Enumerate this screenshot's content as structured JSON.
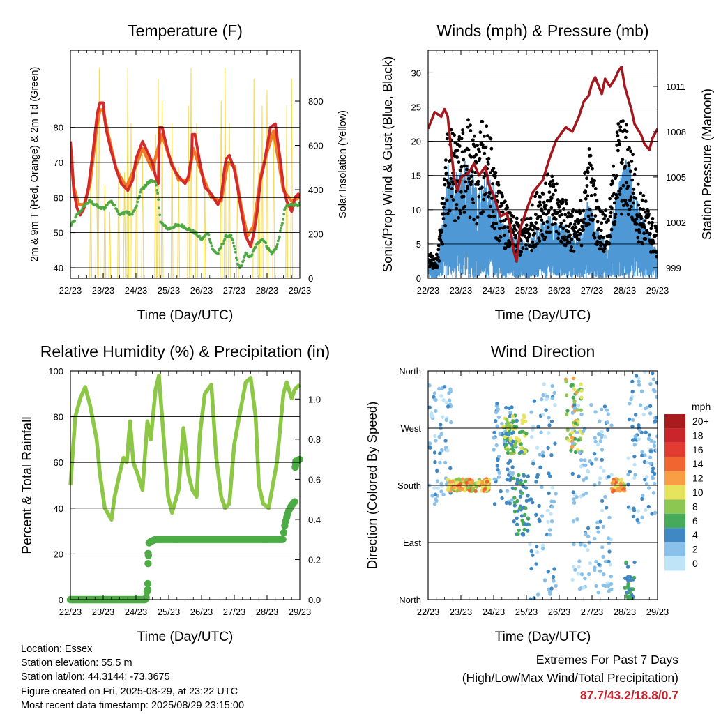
{
  "chart_data": [
    {
      "type": "line",
      "title": "Temperature (F)",
      "xlabel": "Time (Day/UTC)",
      "ylabel": "2m & 9m T (Red, Orange) & 2m Td (Green)",
      "ylabel_right": "Solar Insolation (Yellow)",
      "x_ticks": [
        "22/23",
        "23/23",
        "24/23",
        "25/23",
        "26/23",
        "27/23",
        "28/23",
        "29/23"
      ],
      "xlim_days": [
        0,
        7
      ],
      "ylim": [
        37,
        102
      ],
      "y_ticks": [
        40,
        50,
        60,
        70,
        80
      ],
      "ylim_right": [
        0,
        1030
      ],
      "y_ticks_right": [
        0,
        200,
        400,
        600,
        800
      ],
      "grid": "horizontal",
      "colors": {
        "t2m": "#d42a2a",
        "t9m": "#f07b22",
        "td2m": "#4fa843",
        "solar": "#f5dc5a"
      },
      "series": [
        {
          "key": "t2m",
          "x": [
            0,
            0.05,
            0.1,
            0.2,
            0.3,
            0.42,
            0.55,
            0.7,
            0.82,
            0.9,
            1.0,
            1.05,
            1.1,
            1.25,
            1.4,
            1.55,
            1.75,
            1.9,
            2.0,
            2.2,
            2.35,
            2.5,
            2.6,
            2.68,
            2.72,
            2.8,
            2.95,
            3.1,
            3.3,
            3.5,
            3.6,
            3.7,
            3.72,
            3.8,
            3.95,
            4.1,
            4.3,
            4.5,
            4.6,
            4.7,
            4.75,
            4.85,
            5.0,
            5.1,
            5.2,
            5.35,
            5.5,
            5.6,
            5.7,
            5.8,
            5.9,
            6.1,
            6.25,
            6.4,
            6.5,
            6.6,
            6.75,
            6.85,
            6.95,
            7.0
          ],
          "values": [
            76,
            70,
            62,
            57,
            55,
            57,
            63,
            74,
            84,
            87,
            87,
            82,
            79,
            73,
            68,
            64,
            62,
            65,
            71,
            76,
            73,
            70,
            66,
            64,
            80,
            80,
            74,
            69,
            66,
            64,
            66,
            72,
            78,
            78,
            70,
            63,
            61,
            58,
            60,
            68,
            71,
            72,
            68,
            63,
            57,
            49,
            46,
            50,
            56,
            65,
            69,
            80,
            81,
            71,
            63,
            59,
            56,
            60,
            61,
            60
          ]
        },
        {
          "key": "t9m",
          "x": [
            0,
            0.1,
            0.25,
            0.42,
            0.6,
            0.8,
            0.9,
            1.0,
            1.15,
            1.4,
            1.7,
            2.0,
            2.2,
            2.5,
            2.7,
            2.8,
            3.0,
            3.3,
            3.6,
            3.75,
            4.0,
            4.3,
            4.6,
            4.8,
            5.0,
            5.2,
            5.4,
            5.6,
            5.8,
            6.0,
            6.2,
            6.5,
            6.75,
            7.0
          ],
          "values": [
            74,
            63,
            58,
            58,
            64,
            80,
            85,
            85,
            78,
            68,
            63,
            69,
            74,
            68,
            75,
            78,
            72,
            65,
            65,
            74,
            67,
            60,
            59,
            70,
            69,
            58,
            49,
            52,
            66,
            73,
            79,
            62,
            59,
            60
          ]
        },
        {
          "key": "td2m",
          "x": [
            0,
            0.1,
            0.2,
            0.3,
            0.45,
            0.6,
            0.75,
            0.9,
            1.05,
            1.2,
            1.35,
            1.5,
            1.7,
            1.85,
            2.0,
            2.15,
            2.35,
            2.5,
            2.6,
            2.68,
            2.75,
            2.85,
            3.0,
            3.2,
            3.4,
            3.6,
            3.8,
            4.0,
            4.2,
            4.35,
            4.5,
            4.6,
            4.75,
            4.9,
            5.0,
            5.1,
            5.2,
            5.35,
            5.5,
            5.65,
            5.8,
            5.9,
            6.0,
            6.15,
            6.3,
            6.45,
            6.55,
            6.7,
            6.85,
            7.0
          ],
          "values": [
            52,
            53,
            55,
            56,
            58,
            59,
            58,
            57,
            57,
            59,
            58,
            55,
            56,
            55,
            57,
            62,
            64,
            65,
            64,
            60,
            53,
            52,
            51,
            52,
            52,
            51,
            50,
            48,
            50,
            45,
            44,
            46,
            49,
            49,
            46,
            41,
            40,
            44,
            43,
            46,
            48,
            48,
            46,
            44,
            46,
            52,
            57,
            58,
            58,
            58
          ]
        },
        {
          "key": "solar",
          "x_peak": [
            0.62,
            0.8,
            0.88,
            1.05,
            1.2,
            1.47,
            1.65,
            1.75,
            1.85,
            2.02,
            2.2,
            2.6,
            2.68,
            2.8,
            3.1,
            3.3,
            3.6,
            3.68,
            3.85,
            4.1,
            4.6,
            4.72,
            4.85,
            5.1,
            5.6,
            5.75,
            5.85,
            6.0,
            6.2,
            6.6,
            6.75
          ],
          "values": [
            480,
            700,
            950,
            420,
            300,
            500,
            480,
            950,
            700,
            560,
            560,
            650,
            900,
            800,
            700,
            500,
            780,
            950,
            700,
            420,
            800,
            950,
            700,
            450,
            900,
            600,
            780,
            850,
            660,
            780,
            900
          ]
        }
      ]
    },
    {
      "type": "scatter",
      "title": "Winds (mph) & Pressure (mb)",
      "xlabel": "Time (Day/UTC)",
      "ylabel": "Sonic/Prop Wind & Gust (Blue, Black)",
      "ylabel_right": "Station Pressure (Maroon)",
      "x_ticks": [
        "22/23",
        "23/23",
        "24/23",
        "25/23",
        "26/23",
        "27/23",
        "28/23",
        "29/23"
      ],
      "xlim_days": [
        0,
        7
      ],
      "ylim": [
        0,
        33.3
      ],
      "y_ticks": [
        0,
        5,
        10,
        15,
        20,
        25,
        30
      ],
      "ylim_right": [
        998.3,
        1013.4
      ],
      "y_ticks_right": [
        999,
        1002,
        1005,
        1008,
        1011
      ],
      "grid": "horizontal",
      "colors": {
        "wind": "#4f98d6",
        "gust": "#000000",
        "pressure": "#a3171e"
      },
      "wind_envelope": {
        "x": [
          0,
          0.3,
          0.6,
          0.9,
          1.2,
          1.5,
          1.8,
          2.0,
          2.2,
          2.5,
          2.8,
          3.1,
          3.4,
          3.7,
          4.0,
          4.3,
          4.6,
          4.9,
          5.2,
          5.5,
          5.8,
          6.1,
          6.4,
          6.7,
          7.0
        ],
        "values": [
          2,
          2,
          12,
          11,
          13,
          10,
          11,
          10,
          7,
          5,
          4,
          4,
          6,
          7,
          6,
          5,
          4,
          9,
          5,
          4,
          10,
          13,
          8,
          5,
          3
        ]
      },
      "gust_envelope": {
        "x": [
          0,
          0.3,
          0.6,
          0.9,
          1.2,
          1.5,
          1.8,
          2.0,
          2.2,
          2.5,
          2.8,
          3.1,
          3.4,
          3.7,
          4.0,
          4.3,
          4.6,
          4.9,
          5.2,
          5.5,
          5.8,
          6.1,
          6.4,
          6.7,
          7.0
        ],
        "values": [
          3,
          3,
          19,
          17,
          20,
          17,
          22,
          14,
          11,
          8,
          7,
          8,
          12,
          13,
          11,
          9,
          8,
          17,
          9,
          8,
          20,
          19,
          12,
          9,
          6
        ]
      },
      "pressure": {
        "x": [
          0,
          0.2,
          0.4,
          0.5,
          0.6,
          0.7,
          0.8,
          0.9,
          1.0,
          1.2,
          1.3,
          1.4,
          1.55,
          1.75,
          1.85,
          2.0,
          2.2,
          2.4,
          2.5,
          2.6,
          2.7,
          2.8,
          3.0,
          3.2,
          3.5,
          3.7,
          3.9,
          4.2,
          4.4,
          4.6,
          4.75,
          4.9,
          5.0,
          5.1,
          5.3,
          5.4,
          5.55,
          5.7,
          5.8,
          5.9,
          6.0,
          6.2,
          6.3,
          6.5,
          6.6,
          6.75,
          6.85,
          7.0
        ],
        "values": [
          1008.2,
          1009.3,
          1009.0,
          1009.5,
          1009.0,
          1006.8,
          1004.9,
          1004.1,
          1005.0,
          1005.2,
          1005.5,
          1005.9,
          1005.1,
          1005.7,
          1004.5,
          1003.8,
          1002.4,
          1002.6,
          1001.8,
          1000.2,
          999.4,
          1001.5,
          1002.8,
          1004.0,
          1004.8,
          1006.2,
          1007.4,
          1008.3,
          1008.0,
          1009.0,
          1010.0,
          1010.4,
          1011.2,
          1011.6,
          1010.5,
          1011.5,
          1011.0,
          1011.5,
          1012.0,
          1012.3,
          1011.0,
          1009.5,
          1008.5,
          1007.8,
          1007.2,
          1006.8,
          1007.6,
          1008.2
        ]
      }
    },
    {
      "type": "line",
      "title": "Relative Humidity (%) & Precipitation (in)",
      "xlabel": "Time (Day/UTC)",
      "ylabel": "Percent & Total Rainfall",
      "x_ticks": [
        "22/23",
        "23/23",
        "24/23",
        "25/23",
        "26/23",
        "27/23",
        "28/23",
        "29/23"
      ],
      "xlim_days": [
        0,
        7
      ],
      "ylim": [
        0,
        100
      ],
      "y_ticks": [
        0,
        20,
        40,
        60,
        80,
        100
      ],
      "ylim_right": [
        0,
        1.14
      ],
      "y_ticks_right": [
        0.0,
        0.2,
        0.4,
        0.6,
        0.8,
        1.0
      ],
      "grid": "horizontal",
      "colors": {
        "rh": "#8cc846",
        "rain": "#4cac44"
      },
      "rh": {
        "x": [
          0,
          0.15,
          0.3,
          0.45,
          0.6,
          0.8,
          0.9,
          1.05,
          1.25,
          1.35,
          1.5,
          1.62,
          1.72,
          1.82,
          1.92,
          2.05,
          2.2,
          2.35,
          2.45,
          2.6,
          2.7,
          2.85,
          2.98,
          3.1,
          3.3,
          3.45,
          3.6,
          3.72,
          3.85,
          3.95,
          4.1,
          4.3,
          4.45,
          4.6,
          4.72,
          4.85,
          5.0,
          5.15,
          5.35,
          5.5,
          5.65,
          5.75,
          5.88,
          6.05,
          6.3,
          6.5,
          6.6,
          6.75,
          6.85,
          7.0
        ],
        "values": [
          50,
          80,
          88,
          93,
          85,
          70,
          55,
          40,
          35,
          45,
          55,
          62,
          60,
          78,
          60,
          55,
          48,
          78,
          70,
          92,
          98,
          70,
          45,
          38,
          48,
          75,
          55,
          48,
          45,
          72,
          90,
          94,
          62,
          45,
          40,
          42,
          68,
          80,
          95,
          97,
          80,
          50,
          42,
          40,
          60,
          90,
          95,
          88,
          92,
          94
        ]
      },
      "rain": {
        "x": [
          0,
          0.5,
          1.0,
          1.5,
          2.0,
          2.3,
          2.35,
          2.36,
          2.38,
          2.45,
          2.6,
          3.0,
          4.0,
          5.0,
          6.0,
          6.48,
          6.55,
          6.65,
          6.75,
          6.85,
          6.86,
          6.9,
          7.0
        ],
        "values": [
          0,
          0,
          0,
          0,
          0,
          0,
          0.05,
          0.18,
          0.28,
          0.29,
          0.3,
          0.3,
          0.3,
          0.3,
          0.3,
          0.3,
          0.38,
          0.44,
          0.47,
          0.49,
          0.66,
          0.69,
          0.7
        ]
      }
    },
    {
      "type": "scatter",
      "title": "Wind Direction",
      "xlabel": "Time (Day/UTC)",
      "ylabel": "Direction (Colored By Speed)",
      "x_ticks": [
        "22/23",
        "23/23",
        "24/23",
        "25/23",
        "26/23",
        "27/23",
        "28/23",
        "29/23"
      ],
      "xlim_days": [
        0,
        7
      ],
      "y_ticks": [
        "North",
        "East",
        "South",
        "West",
        "North"
      ],
      "ylim_deg": [
        0,
        360
      ],
      "grid": "horizontal",
      "legend": {
        "title": "mph",
        "labels": [
          "20+",
          "18",
          "16",
          "14",
          "12",
          "10",
          "8",
          "6",
          "4",
          "2",
          "0"
        ],
        "colors": [
          "#a81c1e",
          "#c9252b",
          "#e23b31",
          "#ef6631",
          "#f89e44",
          "#e5e45c",
          "#8cc752",
          "#47a95a",
          "#3f88c4",
          "#8ac1ea",
          "#bfe4f7"
        ],
        "placement": "right"
      },
      "clusters": [
        {
          "x": [
            0.0,
            0.7
          ],
          "deg": [
            150,
            340
          ],
          "speed": [
            1,
            5
          ]
        },
        {
          "x": [
            0.6,
            1.9
          ],
          "deg": [
            170,
            190
          ],
          "speed": [
            9,
            16
          ]
        },
        {
          "x": [
            2.0,
            2.6
          ],
          "deg": [
            150,
            310
          ],
          "speed": [
            3,
            6
          ]
        },
        {
          "x": [
            2.3,
            3.0
          ],
          "deg": [
            230,
            290
          ],
          "speed": [
            5,
            12
          ]
        },
        {
          "x": [
            2.6,
            3.1
          ],
          "deg": [
            100,
            200
          ],
          "speed": [
            4,
            8
          ]
        },
        {
          "x": [
            3.1,
            3.9
          ],
          "deg": [
            0,
            340
          ],
          "speed": [
            1,
            6
          ]
        },
        {
          "x": [
            4.2,
            4.7
          ],
          "deg": [
            230,
            350
          ],
          "speed": [
            6,
            13
          ]
        },
        {
          "x": [
            4.4,
            5.6
          ],
          "deg": [
            10,
            310
          ],
          "speed": [
            1,
            5
          ]
        },
        {
          "x": [
            5.6,
            6.0
          ],
          "deg": [
            170,
            190
          ],
          "speed": [
            9,
            16
          ]
        },
        {
          "x": [
            6.0,
            6.3
          ],
          "deg": [
            0,
            60
          ],
          "speed": [
            4,
            8
          ]
        },
        {
          "x": [
            6.1,
            7.0
          ],
          "deg": [
            120,
            360
          ],
          "speed": [
            1,
            6
          ]
        }
      ]
    }
  ],
  "info": {
    "location": "Location: Essex",
    "elevation": "Station elevation: 55.5 m",
    "latlon": "Station lat/lon: 44.3144; -73.3675",
    "created": "Figure created on Fri, 2025-08-29, at 23:22 UTC",
    "recent": "Most recent data timestamp: 2025/08/29 23:15:00"
  },
  "extremes": {
    "heading": "Extremes For Past 7 Days",
    "subheading": "(High/Low/Max Wind/Total Precipitation)",
    "values": "87.7/43.2/18.8/0.7"
  }
}
